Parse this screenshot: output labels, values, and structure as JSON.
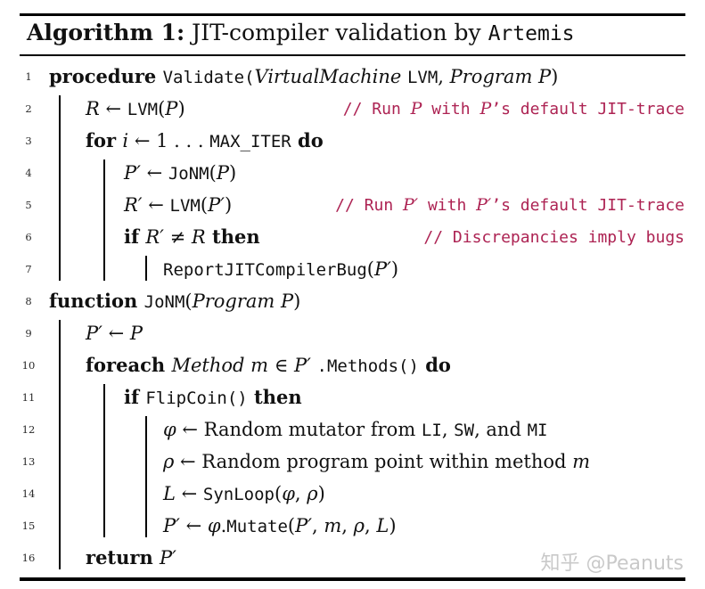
{
  "header": {
    "label": "Algorithm 1:",
    "title_rest": " JIT-compiler validation by ",
    "tool_name": "Artemis"
  },
  "colors": {
    "comment": "#ad2353",
    "rule": "#000000",
    "watermark": "#c9c9c9"
  },
  "watermark": "知乎 @Peanuts",
  "algorithm": {
    "lines": [
      {
        "no": "1",
        "indent": 0,
        "segments": [
          {
            "t": "procedure ",
            "s": "kw"
          },
          {
            "t": "Validate(",
            "s": "fn"
          },
          {
            "t": "VirtualMachine ",
            "s": "var"
          },
          {
            "t": "LVM",
            "s": "fn"
          },
          {
            "t": ", ",
            "s": "txt"
          },
          {
            "t": "Program P",
            "s": "var"
          },
          {
            "t": ")",
            "s": "txt"
          }
        ]
      },
      {
        "no": "2",
        "indent": 1,
        "segments": [
          {
            "t": "R",
            "s": "var"
          },
          {
            "t": " ← ",
            "s": "txt"
          },
          {
            "t": "LVM",
            "s": "fn"
          },
          {
            "t": "(",
            "s": "txt"
          },
          {
            "t": "P",
            "s": "var"
          },
          {
            "t": ")",
            "s": "txt"
          }
        ],
        "comment": [
          {
            "t": "// Run ",
            "s": "cmt"
          },
          {
            "t": "P",
            "s": "cvar"
          },
          {
            "t": " with ",
            "s": "cmt"
          },
          {
            "t": "P",
            "s": "cvar"
          },
          {
            "t": "’s default JIT-trace",
            "s": "cmt"
          }
        ]
      },
      {
        "no": "3",
        "indent": 1,
        "segments": [
          {
            "t": "for ",
            "s": "kw"
          },
          {
            "t": "i",
            "s": "var"
          },
          {
            "t": " ← 1 . . . ",
            "s": "txt"
          },
          {
            "t": "MAX_ITER",
            "s": "fn"
          },
          {
            "t": " do",
            "s": "kw"
          }
        ]
      },
      {
        "no": "4",
        "indent": 2,
        "segments": [
          {
            "t": "P′",
            "s": "var"
          },
          {
            "t": " ← ",
            "s": "txt"
          },
          {
            "t": "JoNM",
            "s": "fn"
          },
          {
            "t": "(",
            "s": "txt"
          },
          {
            "t": "P",
            "s": "var"
          },
          {
            "t": ")",
            "s": "txt"
          }
        ]
      },
      {
        "no": "5",
        "indent": 2,
        "segments": [
          {
            "t": "R′",
            "s": "var"
          },
          {
            "t": " ← ",
            "s": "txt"
          },
          {
            "t": "LVM",
            "s": "fn"
          },
          {
            "t": "(",
            "s": "txt"
          },
          {
            "t": "P′",
            "s": "var"
          },
          {
            "t": ")",
            "s": "txt"
          }
        ],
        "comment": [
          {
            "t": "// Run ",
            "s": "cmt"
          },
          {
            "t": "P′",
            "s": "cvar"
          },
          {
            "t": " with ",
            "s": "cmt"
          },
          {
            "t": "P′",
            "s": "cvar"
          },
          {
            "t": "’s default JIT-trace",
            "s": "cmt"
          }
        ]
      },
      {
        "no": "6",
        "indent": 2,
        "segments": [
          {
            "t": "if ",
            "s": "kw"
          },
          {
            "t": "R′",
            "s": "var"
          },
          {
            "t": " ≠ ",
            "s": "txt"
          },
          {
            "t": "R",
            "s": "var"
          },
          {
            "t": " then",
            "s": "kw"
          }
        ],
        "comment": [
          {
            "t": "// Discrepancies imply bugs",
            "s": "cmt"
          }
        ]
      },
      {
        "no": "7",
        "indent": 3,
        "segments": [
          {
            "t": "ReportJITCompilerBug",
            "s": "fn"
          },
          {
            "t": "(",
            "s": "txt"
          },
          {
            "t": "P′",
            "s": "var"
          },
          {
            "t": ")",
            "s": "txt"
          }
        ]
      },
      {
        "no": "8",
        "indent": 0,
        "segments": [
          {
            "t": "function ",
            "s": "kw"
          },
          {
            "t": "JoNM",
            "s": "fn"
          },
          {
            "t": "(",
            "s": "txt"
          },
          {
            "t": "Program P",
            "s": "var"
          },
          {
            "t": ")",
            "s": "txt"
          }
        ]
      },
      {
        "no": "9",
        "indent": 1,
        "segments": [
          {
            "t": "P′",
            "s": "var"
          },
          {
            "t": " ← ",
            "s": "txt"
          },
          {
            "t": "P",
            "s": "var"
          }
        ]
      },
      {
        "no": "10",
        "indent": 1,
        "segments": [
          {
            "t": "foreach ",
            "s": "kw"
          },
          {
            "t": "Method m",
            "s": "var"
          },
          {
            "t": " ∈ ",
            "s": "txt"
          },
          {
            "t": "P′",
            "s": "var"
          },
          {
            "t": " ",
            "s": "txt"
          },
          {
            "t": ".Methods()",
            "s": "fn"
          },
          {
            "t": " do",
            "s": "kw"
          }
        ]
      },
      {
        "no": "11",
        "indent": 2,
        "segments": [
          {
            "t": "if ",
            "s": "kw"
          },
          {
            "t": "FlipCoin()",
            "s": "fn"
          },
          {
            "t": " then",
            "s": "kw"
          }
        ]
      },
      {
        "no": "12",
        "indent": 3,
        "segments": [
          {
            "t": "φ",
            "s": "var"
          },
          {
            "t": " ← Random mutator from ",
            "s": "txt"
          },
          {
            "t": "LI",
            "s": "fn"
          },
          {
            "t": ", ",
            "s": "txt"
          },
          {
            "t": "SW",
            "s": "fn"
          },
          {
            "t": ", and ",
            "s": "txt"
          },
          {
            "t": "MI",
            "s": "fn"
          }
        ]
      },
      {
        "no": "13",
        "indent": 3,
        "segments": [
          {
            "t": "ρ",
            "s": "var"
          },
          {
            "t": " ← Random program point within method ",
            "s": "txt"
          },
          {
            "t": "m",
            "s": "var"
          }
        ]
      },
      {
        "no": "14",
        "indent": 3,
        "segments": [
          {
            "t": "L",
            "s": "var"
          },
          {
            "t": " ← ",
            "s": "txt"
          },
          {
            "t": "SynLoop",
            "s": "fn"
          },
          {
            "t": "(",
            "s": "txt"
          },
          {
            "t": "φ",
            "s": "var"
          },
          {
            "t": ", ",
            "s": "txt"
          },
          {
            "t": "ρ",
            "s": "var"
          },
          {
            "t": ")",
            "s": "txt"
          }
        ]
      },
      {
        "no": "15",
        "indent": 3,
        "segments": [
          {
            "t": "P′",
            "s": "var"
          },
          {
            "t": " ← ",
            "s": "txt"
          },
          {
            "t": "φ",
            "s": "var"
          },
          {
            "t": ".",
            "s": "txt"
          },
          {
            "t": "Mutate",
            "s": "fn"
          },
          {
            "t": "(",
            "s": "txt"
          },
          {
            "t": "P′",
            "s": "var"
          },
          {
            "t": ", ",
            "s": "txt"
          },
          {
            "t": "m",
            "s": "var"
          },
          {
            "t": ", ",
            "s": "txt"
          },
          {
            "t": "ρ",
            "s": "var"
          },
          {
            "t": ", ",
            "s": "txt"
          },
          {
            "t": "L",
            "s": "var"
          },
          {
            "t": ")",
            "s": "txt"
          }
        ]
      },
      {
        "no": "16",
        "indent": 1,
        "segments": [
          {
            "t": "return ",
            "s": "kw"
          },
          {
            "t": "P′",
            "s": "var"
          }
        ]
      }
    ],
    "indent_rules": [
      {
        "level": 1,
        "from": 2,
        "to": 7
      },
      {
        "level": 2,
        "from": 4,
        "to": 7
      },
      {
        "level": 3,
        "from": 7,
        "to": 7
      },
      {
        "level": 1,
        "from": 9,
        "to": 16
      },
      {
        "level": 2,
        "from": 11,
        "to": 15
      },
      {
        "level": 3,
        "from": 12,
        "to": 15
      }
    ]
  }
}
